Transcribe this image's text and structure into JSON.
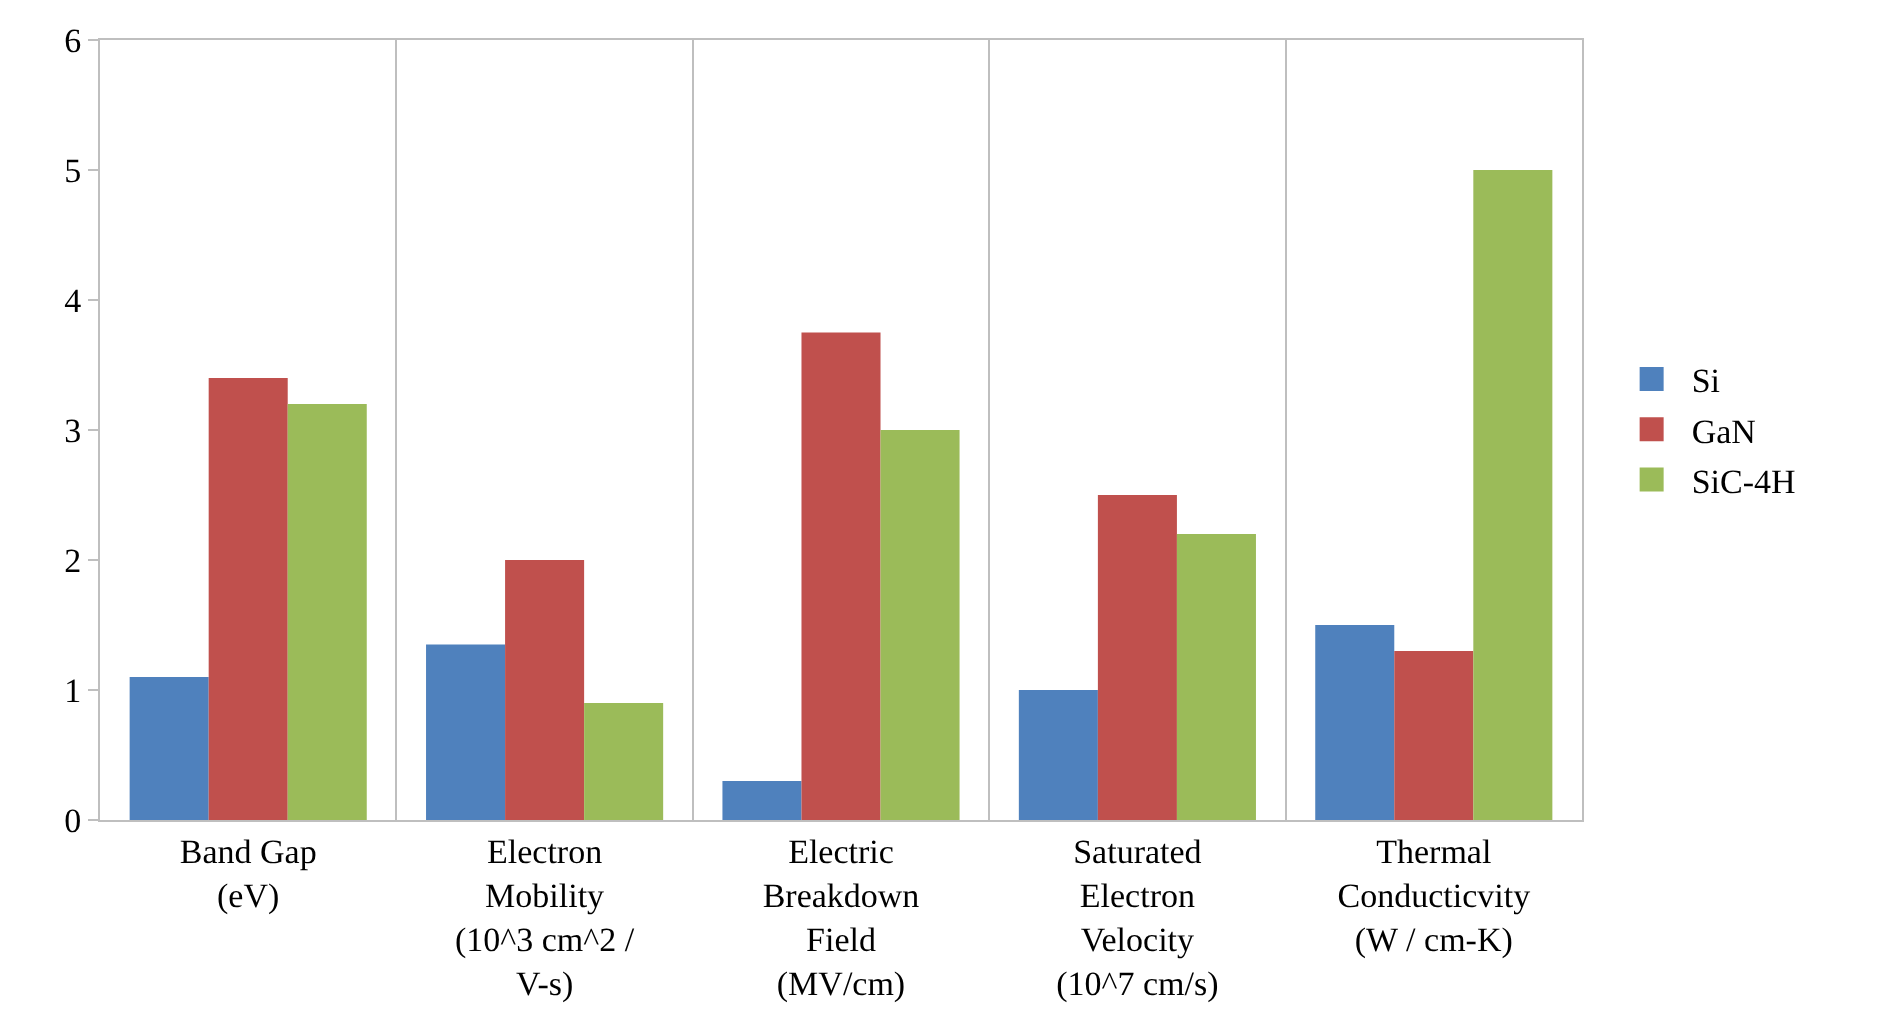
{
  "chart_data": {
    "type": "bar",
    "categories": [
      "Band Gap\n(eV)",
      "Electron\nMobility\n(10^3 cm^2 /\nV-s)",
      "Electric\nBreakdown\nField\n(MV/cm)",
      "Saturated\nElectron\nVelocity\n(10^7 cm/s)",
      "Thermal\nConducticvity\n(W / cm-K)"
    ],
    "series": [
      {
        "name": "Si",
        "color": "#4f81bd",
        "values": [
          1.1,
          1.35,
          0.3,
          1.0,
          1.5
        ]
      },
      {
        "name": "GaN",
        "color": "#c0504d",
        "values": [
          3.4,
          2.0,
          3.75,
          2.5,
          1.3
        ]
      },
      {
        "name": "SiC-4H",
        "color": "#9bbb59",
        "values": [
          3.2,
          0.9,
          3.0,
          2.2,
          5.0
        ]
      }
    ],
    "ylim": [
      0,
      6
    ],
    "yticks": [
      0,
      1,
      2,
      3,
      4,
      5,
      6
    ],
    "grid": "x",
    "legend": "right"
  }
}
